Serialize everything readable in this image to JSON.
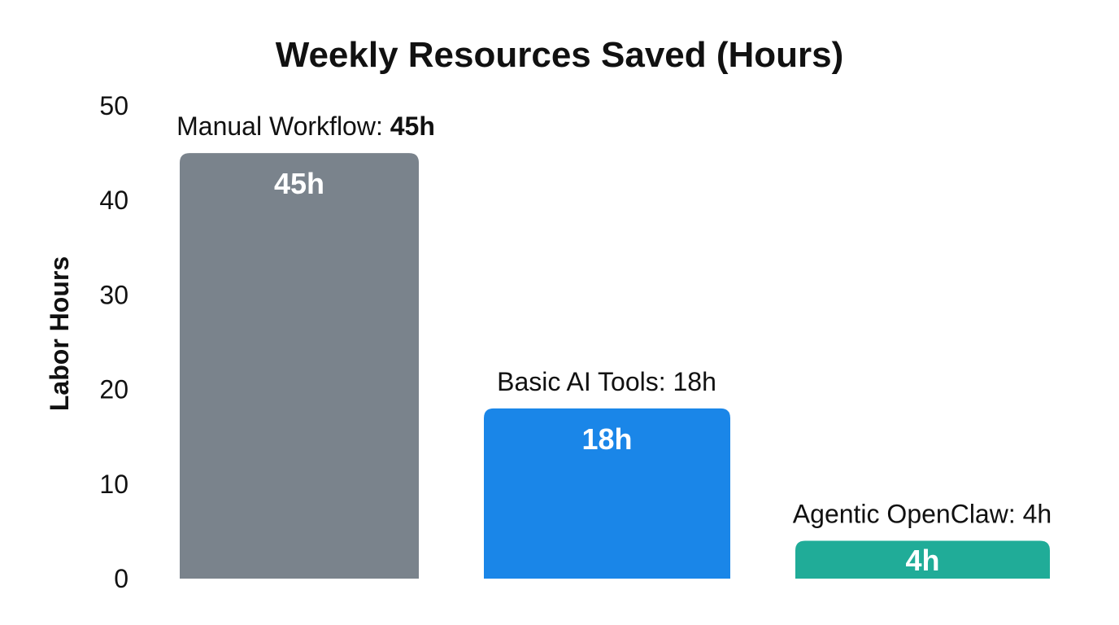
{
  "chart_data": {
    "type": "bar",
    "title": "Weekly Resources Saved (Hours)",
    "xlabel": "",
    "ylabel": "Labor Hours",
    "ylim": [
      0,
      50
    ],
    "yticks": [
      "0",
      "10",
      "20",
      "30",
      "40",
      "50"
    ],
    "grid": false,
    "legend": "none",
    "categories": [
      "Manual Workflow",
      "Basic AI Tools",
      "Agentic OpenClaw"
    ],
    "values": [
      45,
      18,
      4
    ],
    "value_labels": [
      "45h",
      "18h",
      "4h"
    ],
    "category_labels": [
      {
        "name": "Manual Workflow: ",
        "value": "45h"
      },
      {
        "name": "Basic AI Tools: 18h",
        "value": ""
      },
      {
        "name": "Agentic OpenClaw: 4h",
        "value": ""
      }
    ],
    "colors": [
      "#7a838c",
      "#1a86e8",
      "#20ac98"
    ]
  }
}
